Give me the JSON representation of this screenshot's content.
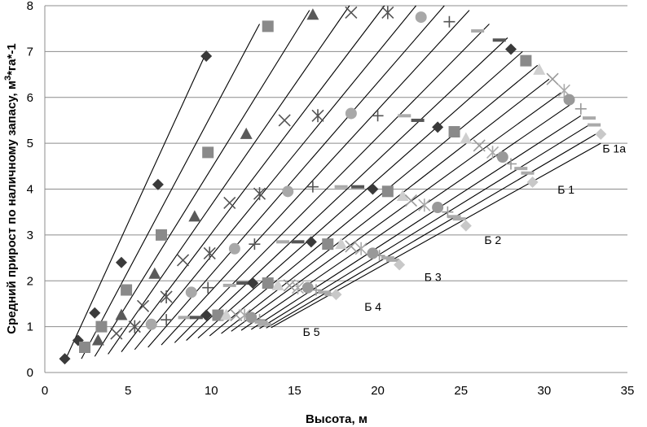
{
  "chart_data": {
    "type": "scatter",
    "xlabel": "Высота, м",
    "ylabel": "Средний прирост по наличному запасу, м³*га*-1",
    "ylabel_parts": {
      "base": "Средний прирост по наличному запасу, м",
      "sup": "3",
      "rest": "*га*-1"
    },
    "xlim": [
      0,
      35
    ],
    "ylim": [
      0,
      8
    ],
    "xticks": [
      "0",
      "5",
      "10",
      "15",
      "20",
      "25",
      "30",
      "35"
    ],
    "yticks": [
      "0",
      "1",
      "2",
      "3",
      "4",
      "5",
      "6",
      "7",
      "8"
    ],
    "grid": "horizontal",
    "annotations": [
      {
        "text": "Б 1а",
        "x": 33.5,
        "y": 4.8
      },
      {
        "text": "Б 1",
        "x": 30.8,
        "y": 3.9
      },
      {
        "text": "Б 2",
        "x": 26.4,
        "y": 2.8
      },
      {
        "text": "Б 3",
        "x": 22.8,
        "y": 2.0
      },
      {
        "text": "Б 4",
        "x": 19.2,
        "y": 1.35
      },
      {
        "text": "Б 5",
        "x": 15.5,
        "y": 0.8
      }
    ],
    "curves": [
      {
        "name": "curve-1",
        "x0": 1.2,
        "y0": 0.25,
        "x1": 9.6,
        "y1": 6.9,
        "marker": "diamond",
        "color": "#3a3a3a",
        "points": [
          [
            1.2,
            0.3
          ],
          [
            2.0,
            0.7
          ],
          [
            3.0,
            1.3
          ],
          [
            4.6,
            2.4
          ],
          [
            6.8,
            4.1
          ],
          [
            9.7,
            6.9
          ]
        ]
      },
      {
        "name": "curve-2",
        "x0": 2.2,
        "y0": 0.3,
        "x1": 12.9,
        "y1": 7.6,
        "marker": "square",
        "color": "#8a8a8a",
        "points": [
          [
            2.4,
            0.55
          ],
          [
            3.4,
            1.0
          ],
          [
            4.9,
            1.8
          ],
          [
            7.0,
            3.0
          ],
          [
            9.8,
            4.8
          ],
          [
            13.4,
            7.55
          ]
        ]
      },
      {
        "name": "curve-3",
        "x0": 3.0,
        "y0": 0.35,
        "x1": 15.9,
        "y1": 7.9,
        "marker": "triangle",
        "color": "#5a5a5a",
        "points": [
          [
            3.2,
            0.7
          ],
          [
            4.6,
            1.25
          ],
          [
            6.6,
            2.15
          ],
          [
            9.0,
            3.4
          ],
          [
            12.1,
            5.2
          ],
          [
            16.1,
            7.8
          ]
        ]
      },
      {
        "name": "curve-4",
        "x0": 3.8,
        "y0": 0.4,
        "x1": 18.3,
        "y1": 8.0,
        "marker": "x",
        "color": "#555555",
        "points": [
          [
            4.3,
            0.85
          ],
          [
            5.9,
            1.45
          ],
          [
            8.3,
            2.45
          ],
          [
            11.1,
            3.7
          ],
          [
            14.4,
            5.5
          ],
          [
            18.4,
            7.85
          ]
        ]
      },
      {
        "name": "curve-5",
        "x0": 4.6,
        "y0": 0.45,
        "x1": 20.4,
        "y1": 8.0,
        "marker": "star",
        "color": "#555555",
        "points": [
          [
            5.4,
            1.0
          ],
          [
            7.3,
            1.65
          ],
          [
            9.9,
            2.6
          ],
          [
            12.9,
            3.9
          ],
          [
            16.4,
            5.6
          ],
          [
            20.6,
            7.85
          ]
        ]
      },
      {
        "name": "curve-6",
        "x0": 5.4,
        "y0": 0.5,
        "x1": 22.3,
        "y1": 8.0,
        "marker": "circle",
        "color": "#a8a8a8",
        "points": [
          [
            6.4,
            1.05
          ],
          [
            8.8,
            1.75
          ],
          [
            11.4,
            2.7
          ],
          [
            14.6,
            3.95
          ],
          [
            18.4,
            5.65
          ],
          [
            22.6,
            7.75
          ]
        ]
      },
      {
        "name": "curve-7",
        "x0": 6.2,
        "y0": 0.55,
        "x1": 24.0,
        "y1": 8.0,
        "marker": "plus",
        "color": "#555555",
        "points": [
          [
            7.3,
            1.15
          ],
          [
            9.8,
            1.85
          ],
          [
            12.6,
            2.8
          ],
          [
            16.1,
            4.05
          ],
          [
            20.0,
            5.6
          ],
          [
            24.3,
            7.65
          ]
        ]
      },
      {
        "name": "curve-8",
        "x0": 7.0,
        "y0": 0.6,
        "x1": 25.5,
        "y1": 7.9,
        "marker": "dash",
        "color": "#aaaaaa",
        "points": [
          [
            8.4,
            1.2
          ],
          [
            11.1,
            1.9
          ],
          [
            14.3,
            2.85
          ],
          [
            17.8,
            4.05
          ],
          [
            21.6,
            5.6
          ],
          [
            26.0,
            7.45
          ]
        ]
      },
      {
        "name": "curve-9",
        "x0": 7.8,
        "y0": 0.65,
        "x1": 26.7,
        "y1": 7.6,
        "marker": "dash",
        "color": "#555555",
        "points": [
          [
            9.1,
            1.2
          ],
          [
            11.9,
            1.95
          ],
          [
            15.2,
            2.85
          ],
          [
            18.8,
            4.05
          ],
          [
            22.4,
            5.5
          ],
          [
            27.3,
            7.25
          ]
        ]
      },
      {
        "name": "curve-10",
        "x0": 8.5,
        "y0": 0.7,
        "x1": 27.8,
        "y1": 7.3,
        "marker": "diamond",
        "color": "#3a3a3a",
        "points": [
          [
            9.7,
            1.25
          ],
          [
            12.5,
            1.95
          ],
          [
            16.0,
            2.85
          ],
          [
            19.7,
            4.0
          ],
          [
            23.6,
            5.35
          ],
          [
            28.0,
            7.05
          ]
        ]
      },
      {
        "name": "curve-11",
        "x0": 9.2,
        "y0": 0.75,
        "x1": 28.7,
        "y1": 7.0,
        "marker": "square",
        "color": "#8a8a8a",
        "points": [
          [
            10.4,
            1.25
          ],
          [
            13.4,
            1.95
          ],
          [
            17.0,
            2.8
          ],
          [
            20.6,
            3.95
          ],
          [
            24.6,
            5.25
          ],
          [
            28.9,
            6.8
          ]
        ]
      },
      {
        "name": "curve-12",
        "x0": 9.9,
        "y0": 0.8,
        "x1": 29.6,
        "y1": 6.7,
        "marker": "triangle",
        "color": "#cfcfcf",
        "points": [
          [
            10.9,
            1.25
          ],
          [
            14.0,
            1.9
          ],
          [
            17.8,
            2.8
          ],
          [
            21.5,
            3.85
          ],
          [
            25.3,
            5.1
          ],
          [
            29.7,
            6.6
          ]
        ]
      },
      {
        "name": "curve-13",
        "x0": 10.6,
        "y0": 0.85,
        "x1": 30.3,
        "y1": 6.4,
        "marker": "x",
        "color": "#999999",
        "points": [
          [
            11.5,
            1.25
          ],
          [
            14.7,
            1.9
          ],
          [
            18.4,
            2.75
          ],
          [
            22.0,
            3.75
          ],
          [
            26.1,
            4.95
          ],
          [
            30.5,
            6.4
          ]
        ]
      },
      {
        "name": "curve-14",
        "x0": 11.2,
        "y0": 0.9,
        "x1": 31.0,
        "y1": 6.1,
        "marker": "star",
        "color": "#aaaaaa",
        "points": [
          [
            12.0,
            1.25
          ],
          [
            15.2,
            1.85
          ],
          [
            19.0,
            2.7
          ],
          [
            22.8,
            3.65
          ],
          [
            26.9,
            4.8
          ],
          [
            31.2,
            6.15
          ]
        ]
      },
      {
        "name": "curve-15",
        "x0": 11.8,
        "y0": 0.92,
        "x1": 31.6,
        "y1": 5.85,
        "marker": "circle",
        "color": "#999999",
        "points": [
          [
            12.4,
            1.2
          ],
          [
            15.8,
            1.85
          ],
          [
            19.7,
            2.6
          ],
          [
            23.6,
            3.6
          ],
          [
            27.5,
            4.7
          ],
          [
            31.5,
            5.95
          ]
        ]
      },
      {
        "name": "curve-16",
        "x0": 12.4,
        "y0": 0.94,
        "x1": 32.2,
        "y1": 5.6,
        "marker": "plus",
        "color": "#999999",
        "points": [
          [
            12.9,
            1.15
          ],
          [
            16.3,
            1.8
          ],
          [
            20.1,
            2.55
          ],
          [
            24.2,
            3.5
          ],
          [
            28.0,
            4.55
          ],
          [
            32.2,
            5.75
          ]
        ]
      },
      {
        "name": "curve-17",
        "x0": 12.9,
        "y0": 0.96,
        "x1": 32.7,
        "y1": 5.4,
        "marker": "dash",
        "color": "#aaaaaa",
        "points": [
          [
            13.0,
            1.1
          ],
          [
            16.8,
            1.75
          ],
          [
            20.6,
            2.5
          ],
          [
            24.6,
            3.4
          ],
          [
            28.6,
            4.45
          ],
          [
            32.7,
            5.55
          ]
        ]
      },
      {
        "name": "curve-18",
        "x0": 13.3,
        "y0": 0.97,
        "x1": 33.1,
        "y1": 5.2,
        "marker": "dash",
        "color": "#aaaaaa",
        "points": [
          [
            13.2,
            1.05
          ],
          [
            17.2,
            1.7
          ],
          [
            20.9,
            2.45
          ],
          [
            24.9,
            3.35
          ],
          [
            29.0,
            4.35
          ],
          [
            33.0,
            5.4
          ]
        ]
      },
      {
        "name": "curve-19",
        "x0": 13.6,
        "y0": 0.98,
        "x1": 33.4,
        "y1": 5.0,
        "marker": "diamond",
        "color": "#c8c8c8",
        "points": [
          [
            17.5,
            1.7
          ],
          [
            21.3,
            2.35
          ],
          [
            25.3,
            3.2
          ],
          [
            29.3,
            4.15
          ],
          [
            33.4,
            5.2
          ]
        ]
      }
    ]
  }
}
